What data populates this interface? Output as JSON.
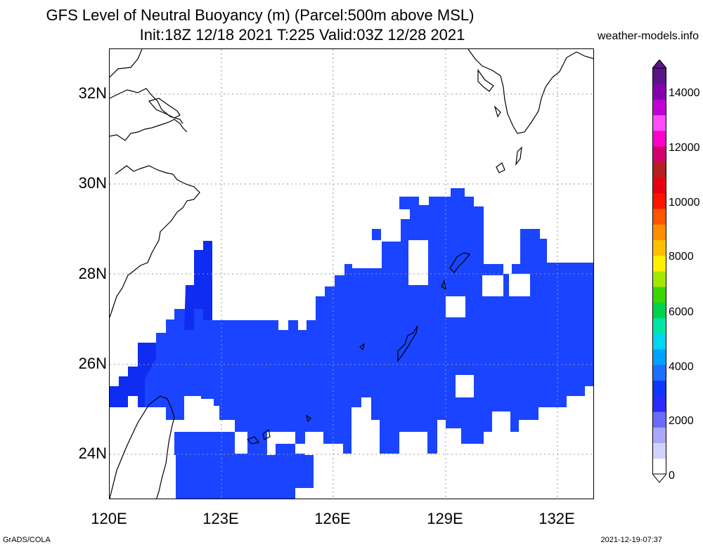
{
  "title_line1": "GFS Level of Neutral Buoyancy (m) (Parcel:500m above MSL)",
  "title_line2": "Init:18Z 12/18 2021 T:225 Valid:03Z 12/28 2021",
  "credit": "weather-models.info",
  "footer_left": "GrADS/COLA",
  "footer_right": "2021-12-19-07:37",
  "map": {
    "lon_range": [
      120,
      133
    ],
    "lat_range": [
      23,
      33
    ],
    "x_tick_labels": [
      "120E",
      "123E",
      "126E",
      "129E",
      "132E"
    ],
    "y_tick_labels": [
      "32N",
      "30N",
      "28N",
      "26N",
      "24N"
    ],
    "grid": "dotted",
    "field_color": "#1a44ff",
    "field_color_dark": "#0e2cf2"
  },
  "colorbar": {
    "labels": [
      "0",
      "2000",
      "4000",
      "6000",
      "8000",
      "10000",
      "12000",
      "14000"
    ],
    "colors": [
      "#ffffff",
      "#d2d2ff",
      "#a7a7ff",
      "#6b6bff",
      "#2b2bff",
      "#0d36ff",
      "#1f6eff",
      "#00a2ff",
      "#00d6ef",
      "#00e6a6",
      "#00d24b",
      "#3bd500",
      "#a2e800",
      "#ffef00",
      "#ffbf00",
      "#ff8e00",
      "#ff5400",
      "#ff1400",
      "#e60010",
      "#b41e1e",
      "#d4006e",
      "#ff00c8",
      "#ff4cff",
      "#c000d4",
      "#8400ae",
      "#5a1687"
    ]
  }
}
